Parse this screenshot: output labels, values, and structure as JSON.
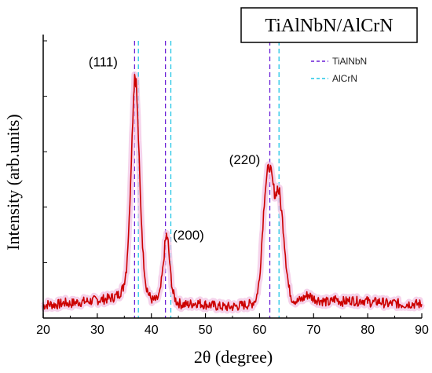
{
  "chart_data": {
    "type": "line",
    "title": "TiAlNbN/AlCrN",
    "xlabel": "2θ (degree)",
    "ylabel": "Intensity (arb.units)",
    "xlim": [
      20,
      90
    ],
    "xticks": [
      "20",
      "30",
      "40",
      "50",
      "60",
      "70",
      "80",
      "90"
    ],
    "ylim": [
      0,
      1
    ],
    "yticks_labeled": false,
    "grid": false,
    "legend_position": "top-right",
    "colors": {
      "line": "#cc0000",
      "halo": "#f2c4e4",
      "tialnbn": "#6a1fd6",
      "alcrn": "#22c6e6"
    },
    "series": [
      {
        "values": [
          [
            20.0,
            0.045
          ],
          [
            21.0,
            0.05
          ],
          [
            22.0,
            0.048
          ],
          [
            23.0,
            0.05
          ],
          [
            24.0,
            0.055
          ],
          [
            25.0,
            0.052
          ],
          [
            26.0,
            0.056
          ],
          [
            27.0,
            0.058
          ],
          [
            28.0,
            0.06
          ],
          [
            29.0,
            0.062
          ],
          [
            30.0,
            0.065
          ],
          [
            31.0,
            0.067
          ],
          [
            32.0,
            0.07
          ],
          [
            33.0,
            0.075
          ],
          [
            34.0,
            0.085
          ],
          [
            34.8,
            0.11
          ],
          [
            35.4,
            0.18
          ],
          [
            35.9,
            0.35
          ],
          [
            36.3,
            0.58
          ],
          [
            36.7,
            0.8
          ],
          [
            36.9,
            0.88
          ],
          [
            37.2,
            0.85
          ],
          [
            37.6,
            0.65
          ],
          [
            38.0,
            0.42
          ],
          [
            38.5,
            0.22
          ],
          [
            39.0,
            0.12
          ],
          [
            39.6,
            0.08
          ],
          [
            40.2,
            0.065
          ],
          [
            41.0,
            0.065
          ],
          [
            41.6,
            0.09
          ],
          [
            42.1,
            0.17
          ],
          [
            42.5,
            0.26
          ],
          [
            42.8,
            0.3
          ],
          [
            43.1,
            0.27
          ],
          [
            43.5,
            0.17
          ],
          [
            44.0,
            0.09
          ],
          [
            44.6,
            0.06
          ],
          [
            45.5,
            0.05
          ],
          [
            46.5,
            0.048
          ],
          [
            47.5,
            0.052
          ],
          [
            48.5,
            0.055
          ],
          [
            49.5,
            0.05
          ],
          [
            50.5,
            0.048
          ],
          [
            51.5,
            0.045
          ],
          [
            52.5,
            0.042
          ],
          [
            53.5,
            0.04
          ],
          [
            54.5,
            0.04
          ],
          [
            55.5,
            0.042
          ],
          [
            56.5,
            0.045
          ],
          [
            57.5,
            0.048
          ],
          [
            58.5,
            0.05
          ],
          [
            59.4,
            0.07
          ],
          [
            60.0,
            0.14
          ],
          [
            60.5,
            0.3
          ],
          [
            61.0,
            0.46
          ],
          [
            61.5,
            0.53
          ],
          [
            61.9,
            0.55
          ],
          [
            62.4,
            0.49
          ],
          [
            62.9,
            0.44
          ],
          [
            63.3,
            0.47
          ],
          [
            63.7,
            0.45
          ],
          [
            64.1,
            0.38
          ],
          [
            64.5,
            0.3
          ],
          [
            64.9,
            0.2
          ],
          [
            65.4,
            0.11
          ],
          [
            66.0,
            0.07
          ],
          [
            67.0,
            0.06
          ],
          [
            68.0,
            0.07
          ],
          [
            69.0,
            0.085
          ],
          [
            70.0,
            0.07
          ],
          [
            71.0,
            0.065
          ],
          [
            72.0,
            0.06
          ],
          [
            73.0,
            0.055
          ],
          [
            74.0,
            0.07
          ],
          [
            75.0,
            0.06
          ],
          [
            76.0,
            0.06
          ],
          [
            77.0,
            0.065
          ],
          [
            78.0,
            0.06
          ],
          [
            79.0,
            0.065
          ],
          [
            80.0,
            0.06
          ],
          [
            81.0,
            0.055
          ],
          [
            82.0,
            0.06
          ],
          [
            83.0,
            0.055
          ],
          [
            84.0,
            0.05
          ],
          [
            85.0,
            0.055
          ],
          [
            86.0,
            0.05
          ],
          [
            87.0,
            0.05
          ],
          [
            88.0,
            0.052
          ],
          [
            89.0,
            0.05
          ],
          [
            90.0,
            0.05
          ]
        ]
      }
    ],
    "reference_lines": [
      {
        "name": "TiAlNbN",
        "x": [
          36.9,
          42.6,
          61.9
        ],
        "color": "#6a1fd6"
      },
      {
        "name": "AlCrN",
        "x": [
          37.6,
          43.6,
          63.6
        ],
        "color": "#22c6e6"
      }
    ],
    "annotations": [
      {
        "text": "(111)",
        "x": 36.9,
        "y": 0.88
      },
      {
        "text": "(200)",
        "x": 42.8,
        "y": 0.3
      },
      {
        "text": "(220)",
        "x": 61.9,
        "y": 0.55
      }
    ]
  }
}
